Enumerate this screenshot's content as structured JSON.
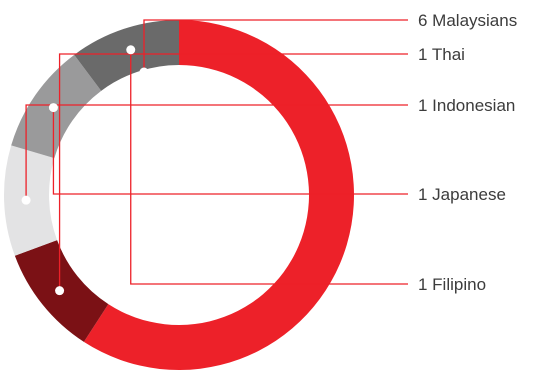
{
  "chart_data": {
    "type": "pie",
    "donut": true,
    "categories": [
      "6 Malaysians",
      "1 Thai",
      "1 Indonesian",
      "1 Japanese",
      "1 Filipino"
    ],
    "values": [
      6,
      1,
      1,
      1,
      1
    ],
    "colors": [
      "#ed2129",
      "#7b1115",
      "#e3e3e4",
      "#9a9a9b",
      "#6a6a6a"
    ],
    "leader_color": "#ed2129"
  }
}
